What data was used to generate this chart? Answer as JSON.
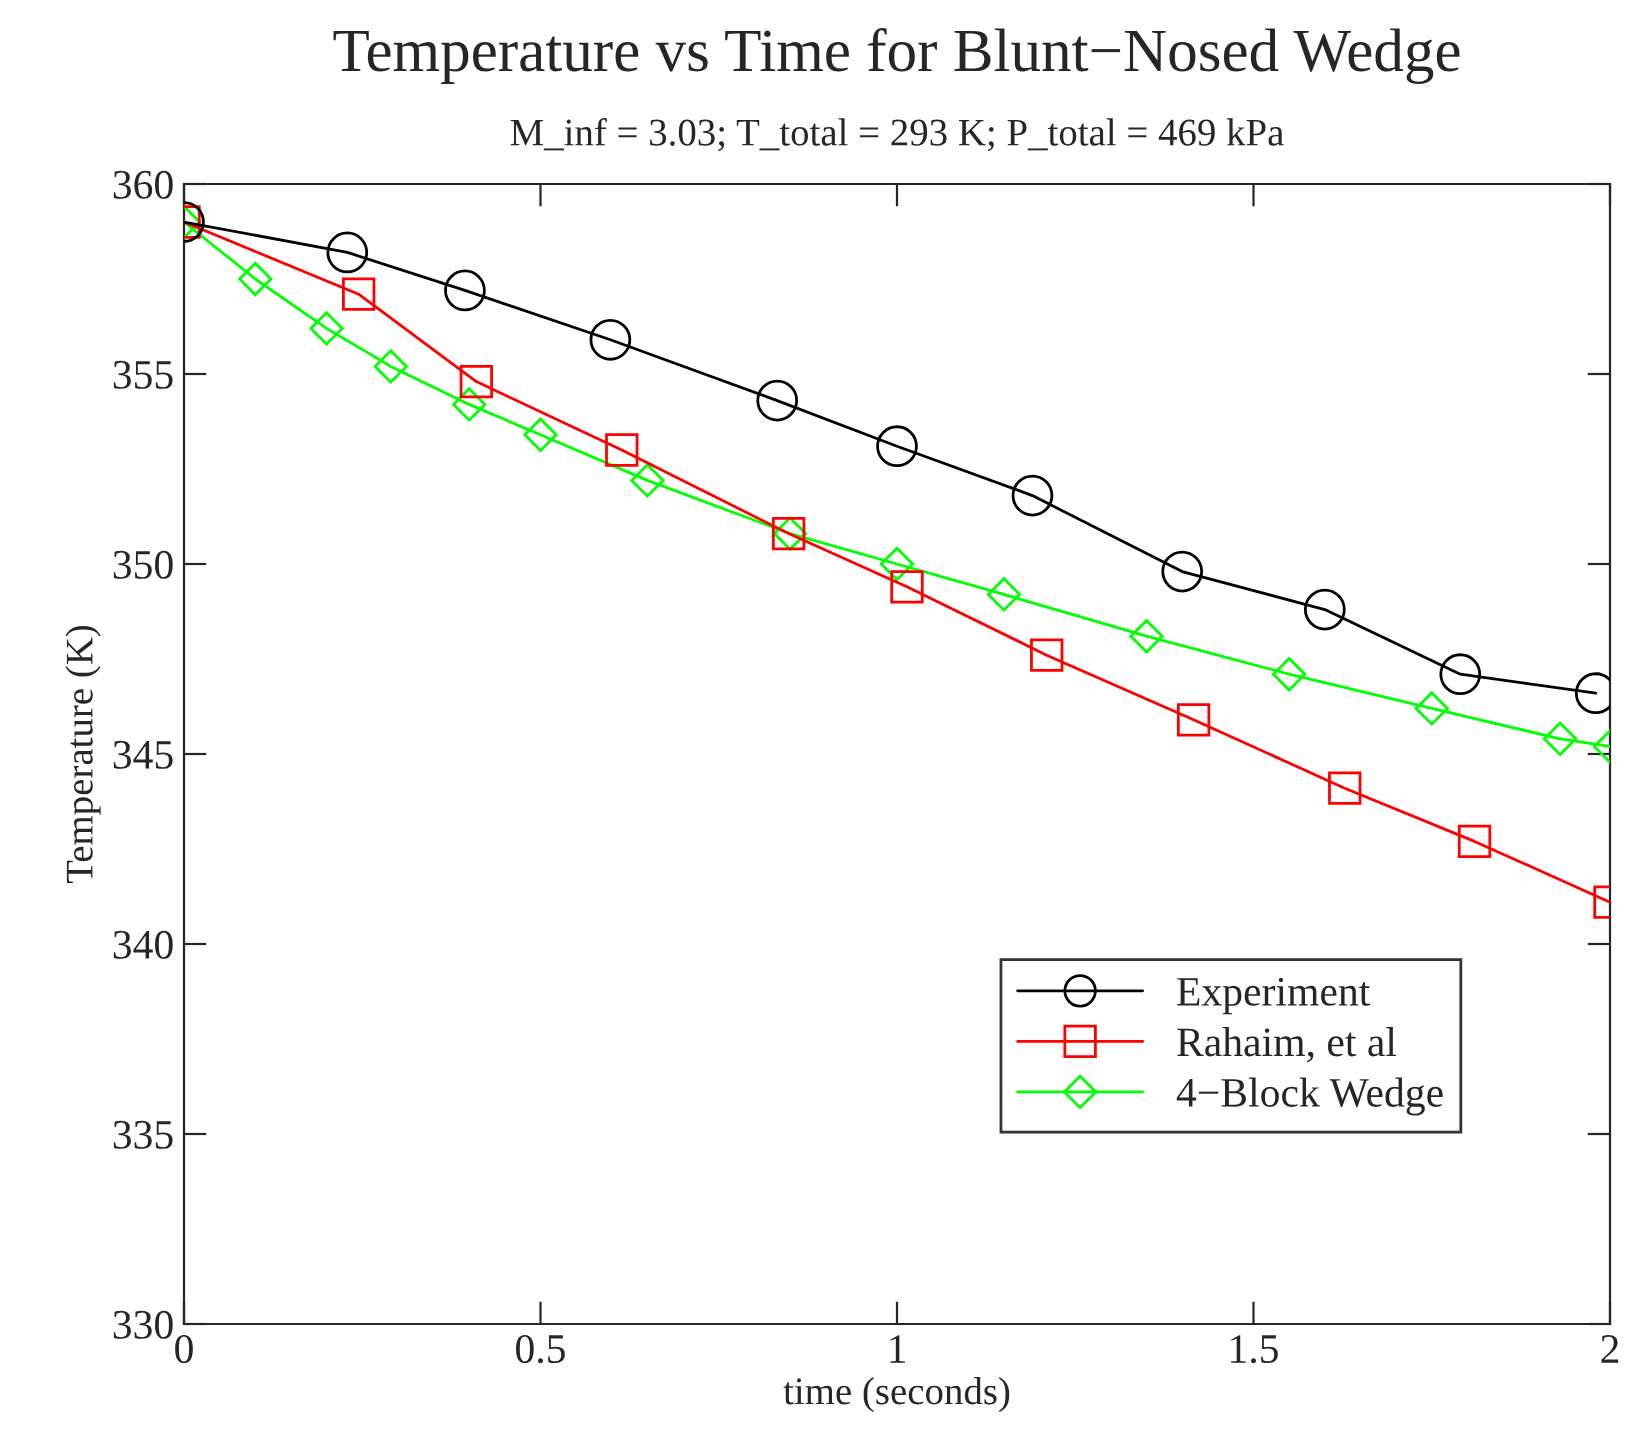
{
  "chart_data": {
    "type": "line",
    "title": "Temperature vs Time for Blunt−Nosed Wedge",
    "subtitle": "M_inf = 3.03; T_total = 293 K; P_total = 469 kPa",
    "xlabel": "time (seconds)",
    "ylabel": "Temperature (K)",
    "xlim": [
      0,
      2
    ],
    "xticks": [
      0,
      0.5,
      1,
      1.5,
      2
    ],
    "ylim": [
      330,
      360
    ],
    "yticks": [
      330,
      335,
      340,
      345,
      350,
      355,
      360
    ],
    "legend": "bottom right",
    "grid": false,
    "series": [
      {
        "name": "Experiment",
        "color": "#000000",
        "marker": "circle",
        "x": [
          0,
          0.229,
          0.394,
          0.598,
          0.832,
          1.0,
          1.19,
          1.4,
          1.6,
          1.79,
          1.98
        ],
        "values": [
          359,
          358.2,
          357.2,
          355.9,
          354.3,
          353.1,
          351.8,
          349.8,
          348.8,
          347.1,
          346.6
        ]
      },
      {
        "name": "Rahaim, et al",
        "color": "#ff0000",
        "marker": "square",
        "x": [
          0,
          0.245,
          0.41,
          0.614,
          0.848,
          1.014,
          1.21,
          1.416,
          1.628,
          1.81,
          2.0
        ],
        "values": [
          359,
          357.1,
          354.8,
          353.0,
          350.8,
          349.4,
          347.6,
          345.9,
          344.1,
          342.7,
          341.1
        ]
      },
      {
        "name": "4−Block Wedge",
        "color": "#00ff00",
        "marker": "diamond",
        "x": [
          0,
          0.1,
          0.2,
          0.29,
          0.4,
          0.5,
          0.65,
          0.85,
          1.0,
          1.15,
          1.35,
          1.55,
          1.75,
          1.93,
          2.0
        ],
        "values": [
          359,
          357.5,
          356.2,
          355.2,
          354.2,
          353.4,
          352.2,
          350.8,
          350.0,
          349.2,
          348.1,
          347.1,
          346.2,
          345.4,
          345.2
        ]
      }
    ]
  }
}
